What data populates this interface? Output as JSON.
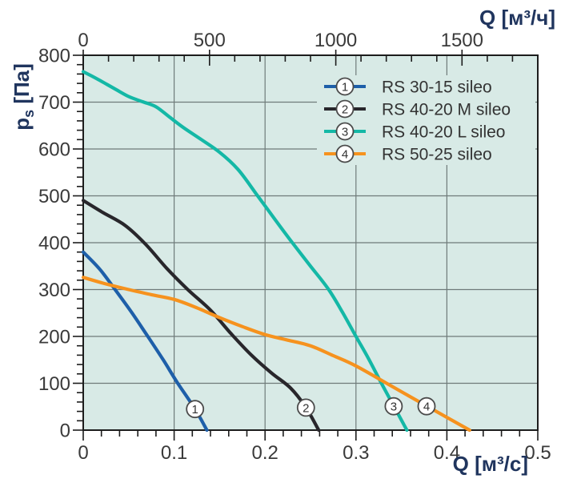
{
  "page": {
    "background": "#ffffff"
  },
  "chart_data": {
    "type": "line",
    "title": "",
    "plot_bg": "#d8eae6",
    "grid_color": "#6f7b7a",
    "axis_color": "#1c1c1c",
    "tick_label_color": "#3a3a3a",
    "title_color": "#20355e",
    "legend_text_color": "#333333",
    "marker_circle_fill": "#ffffff",
    "marker_circle_stroke": "#4b4b4b",
    "grid": true,
    "legend_position": "top-right-inside",
    "axes": {
      "bottom": {
        "label": "Q [м³/с]",
        "min": 0,
        "max": 0.5,
        "majors": [
          {
            "v": 0,
            "t": "0"
          },
          {
            "v": 0.1,
            "t": "0.1"
          },
          {
            "v": 0.2,
            "t": "0.2"
          },
          {
            "v": 0.3,
            "t": "0.3"
          },
          {
            "v": 0.4,
            "t": "0.4"
          },
          {
            "v": 0.5,
            "t": "0.5"
          }
        ],
        "minor_step": 0.02
      },
      "top": {
        "label": "Q [м³/ч]",
        "min": 0,
        "max": 1800,
        "majors": [
          {
            "v": 0,
            "t": "0"
          },
          {
            "v": 500,
            "t": "500"
          },
          {
            "v": 1000,
            "t": "1000"
          },
          {
            "v": 1500,
            "t": "1500"
          }
        ],
        "minor_step": 100
      },
      "left": {
        "label_base": "p",
        "label_sub": "s",
        "label_unit": " [Па]",
        "min": 0,
        "max": 800,
        "majors": [
          {
            "v": 0,
            "t": "0"
          },
          {
            "v": 100,
            "t": "100"
          },
          {
            "v": 200,
            "t": "200"
          },
          {
            "v": 300,
            "t": "300"
          },
          {
            "v": 400,
            "t": "400"
          },
          {
            "v": 500,
            "t": "500"
          },
          {
            "v": 600,
            "t": "600"
          },
          {
            "v": 700,
            "t": "700"
          },
          {
            "v": 800,
            "t": "800"
          }
        ],
        "minor_step": 20
      }
    },
    "series": [
      {
        "num": "1",
        "name": "RS 30-15 sileo",
        "color": "#1e5fa9",
        "marker_at": [
          0.123,
          45
        ],
        "points": [
          [
            0,
            380
          ],
          [
            0.018,
            344
          ],
          [
            0.035,
            300
          ],
          [
            0.053,
            252
          ],
          [
            0.071,
            200
          ],
          [
            0.088,
            150
          ],
          [
            0.104,
            100
          ],
          [
            0.123,
            45
          ],
          [
            0.136,
            0
          ]
        ]
      },
      {
        "num": "2",
        "name": "RS 40-20 M sileo",
        "color": "#28262b",
        "marker_at": [
          0.245,
          48
        ],
        "points": [
          [
            0,
            490
          ],
          [
            0.022,
            464
          ],
          [
            0.046,
            437
          ],
          [
            0.068,
            398
          ],
          [
            0.092,
            345
          ],
          [
            0.115,
            300
          ],
          [
            0.14,
            256
          ],
          [
            0.163,
            205
          ],
          [
            0.185,
            160
          ],
          [
            0.207,
            122
          ],
          [
            0.228,
            90
          ],
          [
            0.245,
            48
          ],
          [
            0.259,
            0
          ]
        ]
      },
      {
        "num": "3",
        "name": "RS 40-20 L sileo",
        "color": "#14b8a6",
        "marker_at": [
          0.3415,
          51
        ],
        "points": [
          [
            0,
            765
          ],
          [
            0.015,
            750
          ],
          [
            0.035,
            728
          ],
          [
            0.05,
            712
          ],
          [
            0.065,
            701
          ],
          [
            0.08,
            690
          ],
          [
            0.095,
            668
          ],
          [
            0.11,
            646
          ],
          [
            0.13,
            620
          ],
          [
            0.15,
            593
          ],
          [
            0.17,
            557
          ],
          [
            0.19,
            505
          ],
          [
            0.21,
            452
          ],
          [
            0.23,
            400
          ],
          [
            0.25,
            350
          ],
          [
            0.27,
            300
          ],
          [
            0.285,
            252
          ],
          [
            0.3,
            200
          ],
          [
            0.314,
            152
          ],
          [
            0.328,
            100
          ],
          [
            0.342,
            50
          ],
          [
            0.356,
            0
          ]
        ]
      },
      {
        "num": "4",
        "name": "RS 50-25 sileo",
        "color": "#f6921e",
        "marker_at": [
          0.3776,
          51
        ],
        "points": [
          [
            0,
            326
          ],
          [
            0.025,
            312
          ],
          [
            0.05,
            300
          ],
          [
            0.075,
            289
          ],
          [
            0.1,
            279
          ],
          [
            0.125,
            261
          ],
          [
            0.15,
            240
          ],
          [
            0.175,
            221
          ],
          [
            0.2,
            204
          ],
          [
            0.225,
            192
          ],
          [
            0.25,
            180
          ],
          [
            0.275,
            159
          ],
          [
            0.3,
            137
          ],
          [
            0.34,
            93
          ],
          [
            0.38,
            49
          ],
          [
            0.425,
            0
          ]
        ]
      }
    ]
  }
}
